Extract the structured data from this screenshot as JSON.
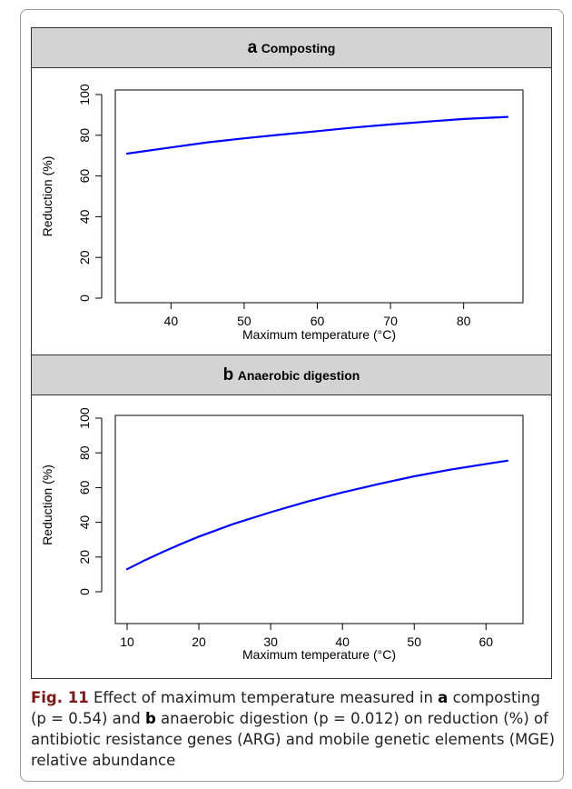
{
  "figure": {
    "caption": {
      "label": "Fig. 11",
      "part1": "Effect of maximum temperature measured in",
      "letter_a": "a",
      "part2": "composting (p = 0.54) and",
      "letter_b": "b",
      "part3": "anaerobic digestion (p = 0.012) on reduction (%) of antibiotic resistance genes (ARG) and mobile genetic elements (MGE) relative abundance"
    }
  },
  "chart_data": [
    {
      "type": "line",
      "panel_letter": "a",
      "title": "Composting",
      "xlabel": "Maximum temperature (°C)",
      "ylabel": "Reduction (%)",
      "xlim": [
        34,
        86
      ],
      "ylim": [
        0,
        100
      ],
      "xticks": [
        40,
        50,
        60,
        70,
        80
      ],
      "yticks": [
        0,
        20,
        40,
        60,
        80,
        100
      ],
      "grid": false,
      "line_color": "#0000ff",
      "x": [
        34,
        40,
        45,
        50,
        55,
        60,
        65,
        70,
        75,
        80,
        86
      ],
      "y": [
        71,
        74,
        76.5,
        78.5,
        80.3,
        82,
        83.8,
        85.3,
        86.7,
        88,
        89
      ]
    },
    {
      "type": "line",
      "panel_letter": "b",
      "title": "Anaerobic digestion",
      "xlabel": "Maximum temperature (°C)",
      "ylabel": "Reduction (%)",
      "xlim": [
        10,
        63
      ],
      "ylim": [
        0,
        100
      ],
      "xticks": [
        10,
        20,
        30,
        40,
        50,
        60
      ],
      "yticks": [
        0,
        20,
        40,
        60,
        80,
        100
      ],
      "grid": false,
      "line_color": "#0000ff",
      "x": [
        10,
        12.5,
        15,
        17.5,
        20,
        25,
        30,
        35,
        40,
        45,
        50,
        55,
        60,
        63
      ],
      "y": [
        13,
        18.2,
        23,
        27.5,
        31.8,
        39.3,
        45.8,
        51.8,
        57.2,
        62,
        66.5,
        70.3,
        73.6,
        75.5
      ]
    }
  ]
}
